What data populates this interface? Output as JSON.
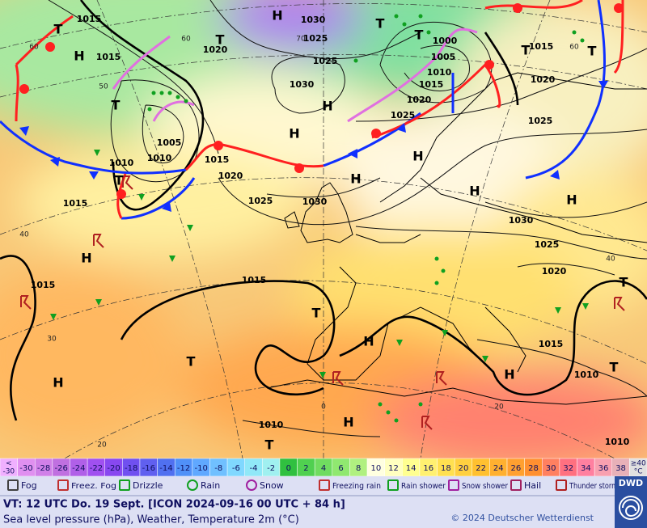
{
  "map": {
    "pressure_labels": [
      "1015",
      "1030",
      "1025",
      "1020",
      "1015",
      "1025",
      "1000",
      "1005",
      "1010",
      "1015",
      "1020",
      "1025",
      "1030",
      "1015",
      "1020",
      "1025",
      "1005",
      "1010",
      "1010",
      "1015",
      "1020",
      "1015",
      "1025",
      "1030",
      "1030",
      "1025",
      "1020",
      "1015",
      "1015",
      "1015",
      "1010",
      "1010",
      "1010"
    ],
    "latitude_labels": [
      "60",
      "60",
      "60",
      "50",
      "40",
      "40",
      "30",
      "20",
      "20",
      "0",
      "70"
    ],
    "pressure_centers": [
      "H",
      "T",
      "H",
      "T",
      "T",
      "T",
      "T",
      "T",
      "H",
      "T",
      "H",
      "H",
      "H",
      "T",
      "H",
      "H",
      "H",
      "T",
      "T",
      "H",
      "T",
      "H",
      "H",
      "T",
      "H",
      "T"
    ]
  },
  "legend": {
    "scale": [
      {
        "top": "<",
        "bottom": "-30",
        "color": "#f0b0ff"
      },
      {
        "label": "-30",
        "color": "#e090f0"
      },
      {
        "label": "-28",
        "color": "#d080e8"
      },
      {
        "label": "-26",
        "color": "#c070e0"
      },
      {
        "label": "-24",
        "color": "#b060e8"
      },
      {
        "label": "-22",
        "color": "#a050f0"
      },
      {
        "label": "-20",
        "color": "#8848f0"
      },
      {
        "label": "-18",
        "color": "#7050f0"
      },
      {
        "label": "-16",
        "color": "#6060f0"
      },
      {
        "label": "-14",
        "color": "#5070f0"
      },
      {
        "label": "-12",
        "color": "#5090f8"
      },
      {
        "label": "-10",
        "color": "#60a8ff"
      },
      {
        "label": "-8",
        "color": "#70c0ff"
      },
      {
        "label": "-6",
        "color": "#80d8ff"
      },
      {
        "label": "-4",
        "color": "#90e8f8"
      },
      {
        "label": "-2",
        "color": "#a0f0f0"
      },
      {
        "label": "0",
        "color": "#30c040"
      },
      {
        "label": "2",
        "color": "#50d050"
      },
      {
        "label": "4",
        "color": "#70dc60"
      },
      {
        "label": "6",
        "color": "#90e870"
      },
      {
        "label": "8",
        "color": "#b0f080"
      },
      {
        "label": "10",
        "color": "#ffffe0"
      },
      {
        "label": "12",
        "color": "#ffffc0"
      },
      {
        "label": "14",
        "color": "#ffff90"
      },
      {
        "label": "16",
        "color": "#fff070"
      },
      {
        "label": "18",
        "color": "#ffe050"
      },
      {
        "label": "20",
        "color": "#ffd040"
      },
      {
        "label": "22",
        "color": "#ffc030"
      },
      {
        "label": "24",
        "color": "#ffb030"
      },
      {
        "label": "26",
        "color": "#ffa030"
      },
      {
        "label": "28",
        "color": "#ff9030"
      },
      {
        "label": "30",
        "color": "#ff8060"
      },
      {
        "label": "32",
        "color": "#ff7080"
      },
      {
        "label": "34",
        "color": "#ff80a0"
      },
      {
        "label": "36",
        "color": "#f8a0b0"
      },
      {
        "label": "38",
        "color": "#e8b0b8"
      },
      {
        "top": "≥40",
        "bottom": "°C",
        "color": "#e0e0e0"
      }
    ],
    "weather": [
      {
        "label": "Fog"
      },
      {
        "label": "Freez. Fog"
      },
      {
        "label": "Drizzle"
      },
      {
        "label": "Rain"
      },
      {
        "label": "Snow"
      },
      {
        "label": "Freezing rain"
      },
      {
        "label": "Rain shower"
      },
      {
        "label": "Snow shower"
      },
      {
        "label": "Hail"
      },
      {
        "label": "Thunder storm"
      }
    ]
  },
  "footer": {
    "valid_time": "VT: 12 UTC Do.  19 Sept. [ICON 2024-09-16  00 UTC + 84 h]",
    "description": "Sea level pressure (hPa), Weather, Temperature 2m (°C)",
    "copyright": "© 2024 Deutscher Wetterdienst",
    "logo": "DWD"
  }
}
